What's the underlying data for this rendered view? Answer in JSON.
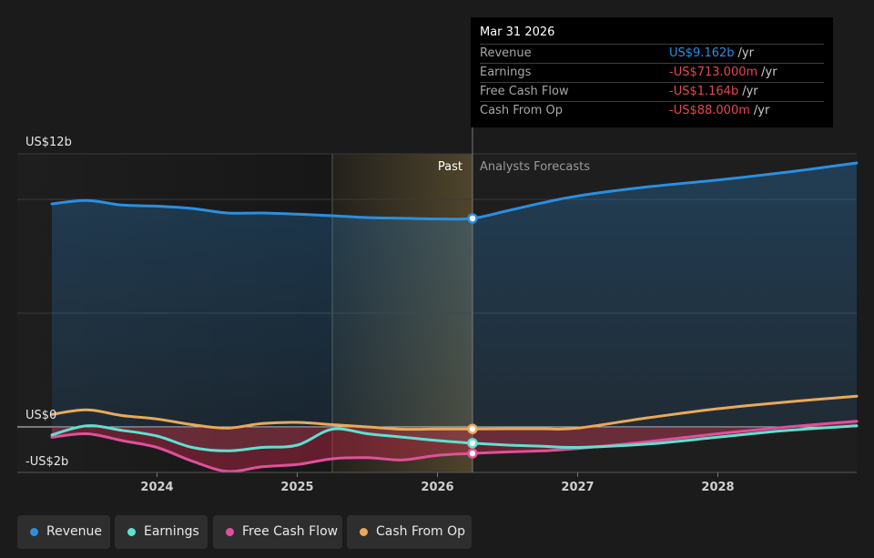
{
  "chart_data": {
    "type": "area",
    "title": "",
    "y_axis_labels": [
      {
        "value": 12,
        "text": "US$12b"
      },
      {
        "value": 0,
        "text": "US$0"
      },
      {
        "value": -2,
        "text": "-US$2b"
      }
    ],
    "ylim": [
      -2,
      12
    ],
    "x_ticks": [
      {
        "value": 2024,
        "label": "2024"
      },
      {
        "value": 2025,
        "label": "2025"
      },
      {
        "value": 2026,
        "label": "2026"
      },
      {
        "value": 2027,
        "label": "2027"
      },
      {
        "value": 2028,
        "label": "2028"
      }
    ],
    "xlim": [
      2022.9,
      2029.0
    ],
    "grid": true,
    "divider_x": 2026.25,
    "highlight_range": [
      2025.25,
      2026.25
    ],
    "past_label": "Past",
    "forecast_label": "Analysts Forecasts",
    "units": "US$b",
    "series": [
      {
        "name": "Revenue",
        "color": "#2b8fe0",
        "fill": true,
        "points": [
          [
            2023.25,
            9.8
          ],
          [
            2023.5,
            9.95
          ],
          [
            2023.75,
            9.75
          ],
          [
            2024.0,
            9.7
          ],
          [
            2024.25,
            9.6
          ],
          [
            2024.5,
            9.4
          ],
          [
            2024.75,
            9.4
          ],
          [
            2025.0,
            9.35
          ],
          [
            2025.25,
            9.28
          ],
          [
            2025.5,
            9.2
          ],
          [
            2025.75,
            9.17
          ],
          [
            2026.0,
            9.14
          ],
          [
            2026.25,
            9.162
          ],
          [
            2026.5,
            9.5
          ],
          [
            2026.75,
            9.85
          ],
          [
            2027.0,
            10.15
          ],
          [
            2027.5,
            10.55
          ],
          [
            2028.0,
            10.85
          ],
          [
            2028.5,
            11.2
          ],
          [
            2029.0,
            11.6
          ]
        ]
      },
      {
        "name": "Earnings",
        "color": "#5fe0cf",
        "fill": true,
        "points": [
          [
            2023.25,
            -0.35
          ],
          [
            2023.5,
            0.05
          ],
          [
            2023.75,
            -0.15
          ],
          [
            2024.0,
            -0.4
          ],
          [
            2024.25,
            -0.9
          ],
          [
            2024.5,
            -1.05
          ],
          [
            2024.75,
            -0.9
          ],
          [
            2025.0,
            -0.8
          ],
          [
            2025.25,
            -0.1
          ],
          [
            2025.5,
            -0.3
          ],
          [
            2025.75,
            -0.45
          ],
          [
            2026.0,
            -0.6
          ],
          [
            2026.25,
            -0.713
          ],
          [
            2026.5,
            -0.8
          ],
          [
            2026.75,
            -0.85
          ],
          [
            2027.0,
            -0.9
          ],
          [
            2027.5,
            -0.75
          ],
          [
            2028.0,
            -0.45
          ],
          [
            2028.5,
            -0.15
          ],
          [
            2029.0,
            0.05
          ]
        ]
      },
      {
        "name": "Free Cash Flow",
        "color": "#e0509a",
        "fill": true,
        "points": [
          [
            2023.25,
            -0.45
          ],
          [
            2023.5,
            -0.3
          ],
          [
            2023.75,
            -0.6
          ],
          [
            2024.0,
            -0.9
          ],
          [
            2024.25,
            -1.5
          ],
          [
            2024.5,
            -1.95
          ],
          [
            2024.75,
            -1.75
          ],
          [
            2025.0,
            -1.65
          ],
          [
            2025.25,
            -1.4
          ],
          [
            2025.5,
            -1.35
          ],
          [
            2025.75,
            -1.45
          ],
          [
            2026.0,
            -1.25
          ],
          [
            2026.25,
            -1.164
          ],
          [
            2026.5,
            -1.1
          ],
          [
            2026.75,
            -1.05
          ],
          [
            2027.0,
            -0.95
          ],
          [
            2027.5,
            -0.65
          ],
          [
            2028.0,
            -0.3
          ],
          [
            2028.5,
            0.0
          ],
          [
            2029.0,
            0.25
          ]
        ]
      },
      {
        "name": "Cash From Op",
        "color": "#e8a95a",
        "fill": false,
        "points": [
          [
            2023.25,
            0.55
          ],
          [
            2023.5,
            0.75
          ],
          [
            2023.75,
            0.5
          ],
          [
            2024.0,
            0.35
          ],
          [
            2024.25,
            0.1
          ],
          [
            2024.5,
            -0.05
          ],
          [
            2024.75,
            0.15
          ],
          [
            2025.0,
            0.2
          ],
          [
            2025.25,
            0.1
          ],
          [
            2025.5,
            0.0
          ],
          [
            2025.75,
            -0.1
          ],
          [
            2026.0,
            -0.09
          ],
          [
            2026.25,
            -0.088
          ],
          [
            2026.5,
            -0.08
          ],
          [
            2026.75,
            -0.08
          ],
          [
            2027.0,
            -0.05
          ],
          [
            2027.5,
            0.4
          ],
          [
            2028.0,
            0.8
          ],
          [
            2028.5,
            1.1
          ],
          [
            2029.0,
            1.35
          ]
        ]
      }
    ]
  },
  "tooltip": {
    "date": "Mar 31 2026",
    "rows": [
      {
        "label": "Revenue",
        "value": "US$9.162b",
        "unit": "/yr",
        "color": "#2b8fe0"
      },
      {
        "label": "Earnings",
        "value": "-US$713.000m",
        "unit": "/yr",
        "color": "#e5484d"
      },
      {
        "label": "Free Cash Flow",
        "value": "-US$1.164b",
        "unit": "/yr",
        "color": "#e5484d"
      },
      {
        "label": "Cash From Op",
        "value": "-US$88.000m",
        "unit": "/yr",
        "color": "#e5484d"
      }
    ]
  },
  "legend": [
    {
      "name": "Revenue",
      "color": "#2b8fe0"
    },
    {
      "name": "Earnings",
      "color": "#5fe0cf"
    },
    {
      "name": "Free Cash Flow",
      "color": "#e0509a"
    },
    {
      "name": "Cash From Op",
      "color": "#e8a95a"
    }
  ]
}
